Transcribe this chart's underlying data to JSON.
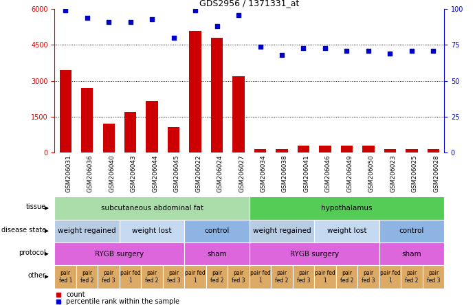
{
  "title": "GDS2956 / 1371331_at",
  "samples": [
    "GSM206031",
    "GSM206036",
    "GSM206040",
    "GSM206043",
    "GSM206044",
    "GSM206045",
    "GSM206022",
    "GSM206024",
    "GSM206027",
    "GSM206034",
    "GSM206038",
    "GSM206041",
    "GSM206046",
    "GSM206049",
    "GSM206050",
    "GSM206023",
    "GSM206025",
    "GSM206028"
  ],
  "counts": [
    3450,
    2700,
    1200,
    1700,
    2150,
    1050,
    5100,
    4800,
    3200,
    150,
    150,
    280,
    280,
    280,
    280,
    150,
    150,
    150
  ],
  "percentile": [
    99,
    94,
    91,
    91,
    93,
    80,
    99,
    88,
    96,
    74,
    68,
    73,
    73,
    71,
    71,
    69,
    71,
    71
  ],
  "ylim_left": [
    0,
    6000
  ],
  "ylim_right": [
    0,
    100
  ],
  "yticks_left": [
    0,
    1500,
    3000,
    4500,
    6000
  ],
  "yticks_right": [
    0,
    25,
    50,
    75,
    100
  ],
  "bar_color": "#cc0000",
  "dot_color": "#0000cc",
  "tissue_row": {
    "label": "tissue",
    "groups": [
      {
        "text": "subcutaneous abdominal fat",
        "start": 0,
        "end": 9,
        "color": "#aaddaa"
      },
      {
        "text": "hypothalamus",
        "start": 9,
        "end": 18,
        "color": "#55cc55"
      }
    ]
  },
  "disease_state_row": {
    "label": "disease state",
    "groups": [
      {
        "text": "weight regained",
        "start": 0,
        "end": 3,
        "color": "#b8cce4"
      },
      {
        "text": "weight lost",
        "start": 3,
        "end": 6,
        "color": "#c5d9f1"
      },
      {
        "text": "control",
        "start": 6,
        "end": 9,
        "color": "#8db4e2"
      },
      {
        "text": "weight regained",
        "start": 9,
        "end": 12,
        "color": "#b8cce4"
      },
      {
        "text": "weight lost",
        "start": 12,
        "end": 15,
        "color": "#c5d9f1"
      },
      {
        "text": "control",
        "start": 15,
        "end": 18,
        "color": "#8db4e2"
      }
    ]
  },
  "protocol_row": {
    "label": "protocol",
    "groups": [
      {
        "text": "RYGB surgery",
        "start": 0,
        "end": 6,
        "color": "#dd66dd"
      },
      {
        "text": "sham",
        "start": 6,
        "end": 9,
        "color": "#dd66dd"
      },
      {
        "text": "RYGB surgery",
        "start": 9,
        "end": 15,
        "color": "#dd66dd"
      },
      {
        "text": "sham",
        "start": 15,
        "end": 18,
        "color": "#dd66dd"
      }
    ]
  },
  "other_row": {
    "label": "other",
    "cells": [
      "pair\nfed 1",
      "pair\nfed 2",
      "pair\nfed 3",
      "pair fed\n1",
      "pair\nfed 2",
      "pair\nfed 3",
      "pair fed\n1",
      "pair\nfed 2",
      "pair\nfed 3",
      "pair fed\n1",
      "pair\nfed 2",
      "pair\nfed 3",
      "pair fed\n1",
      "pair\nfed 2",
      "pair\nfed 3",
      "pair fed\n1",
      "pair\nfed 2",
      "pair\nfed 3"
    ],
    "color": "#ddaa66"
  },
  "legend_count_color": "#cc0000",
  "legend_percentile_color": "#0000cc"
}
